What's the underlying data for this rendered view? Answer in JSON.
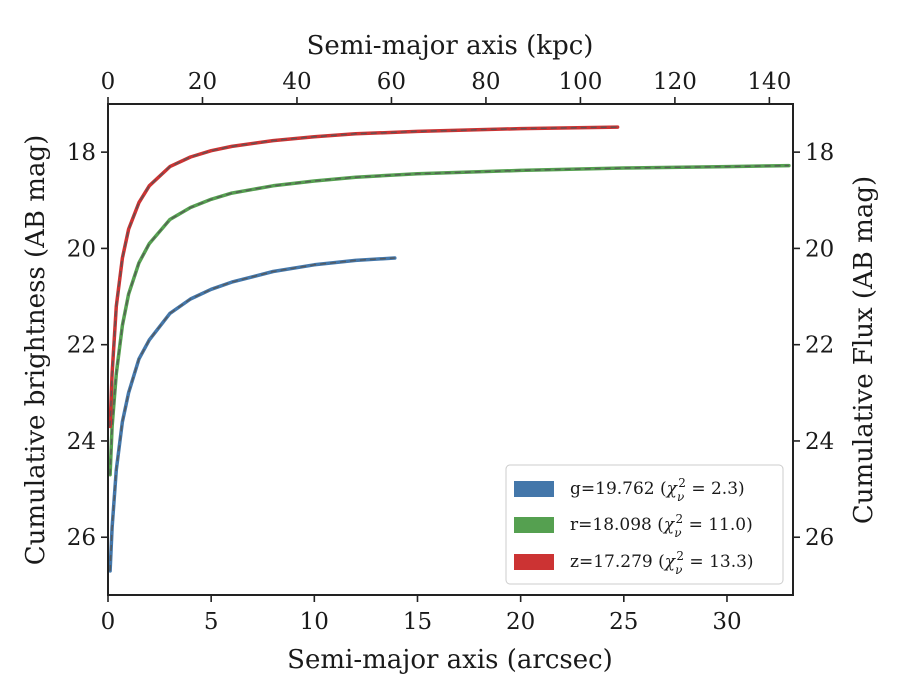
{
  "chart_data": {
    "type": "line",
    "xlabel": "Semi-major axis (arcsec)",
    "ylabel": "Cumulative brightness (AB mag)",
    "top_xlabel": "Semi-major axis (kpc)",
    "right_ylabel": "Cumulative Flux (AB mag)",
    "xlim": [
      0,
      33.2
    ],
    "ylim": [
      27.2,
      17.0
    ],
    "y_inverted": true,
    "top_xlim": [
      0,
      145
    ],
    "xticks": [
      0,
      5,
      10,
      15,
      20,
      25,
      30
    ],
    "yticks": [
      18,
      20,
      22,
      24,
      26
    ],
    "top_xticks": [
      0,
      20,
      40,
      60,
      80,
      100,
      120,
      140
    ],
    "grid": false,
    "legend_position": "lower-right",
    "legend": [
      {
        "band": "g",
        "mag": "19.762",
        "chi2": "2.3",
        "color": "#4477aa"
      },
      {
        "band": "r",
        "mag": "18.098",
        "chi2": "11.0",
        "color": "#55a050"
      },
      {
        "band": "z",
        "mag": "17.279",
        "chi2": "13.3",
        "color": "#cc3333"
      }
    ],
    "series": [
      {
        "band": "g",
        "color": "#4477aa",
        "x": [
          0.1,
          0.2,
          0.4,
          0.7,
          1.0,
          1.5,
          2.0,
          3.0,
          4.0,
          5.0,
          6.0,
          8.0,
          10.0,
          12.0,
          13.9
        ],
        "y": [
          26.7,
          25.8,
          24.6,
          23.6,
          23.0,
          22.3,
          21.9,
          21.35,
          21.05,
          20.85,
          20.7,
          20.48,
          20.34,
          20.25,
          20.2
        ]
      },
      {
        "band": "r",
        "color": "#55a050",
        "x": [
          0.1,
          0.2,
          0.4,
          0.7,
          1.0,
          1.5,
          2.0,
          3.0,
          4.0,
          5.0,
          6.0,
          8.0,
          10.0,
          12.0,
          15.0,
          20.0,
          25.0,
          30.0,
          33.0
        ],
        "y": [
          24.7,
          23.7,
          22.6,
          21.6,
          20.95,
          20.3,
          19.9,
          19.4,
          19.15,
          18.98,
          18.85,
          18.7,
          18.6,
          18.52,
          18.45,
          18.38,
          18.33,
          18.3,
          18.28
        ]
      },
      {
        "band": "z",
        "color": "#cc3333",
        "x": [
          0.1,
          0.2,
          0.4,
          0.7,
          1.0,
          1.5,
          2.0,
          3.0,
          4.0,
          5.0,
          6.0,
          8.0,
          10.0,
          12.0,
          15.0,
          20.0,
          24.7
        ],
        "y": [
          23.7,
          22.6,
          21.2,
          20.2,
          19.6,
          19.05,
          18.7,
          18.3,
          18.1,
          17.97,
          17.88,
          17.76,
          17.68,
          17.62,
          17.57,
          17.51,
          17.48
        ]
      }
    ]
  }
}
